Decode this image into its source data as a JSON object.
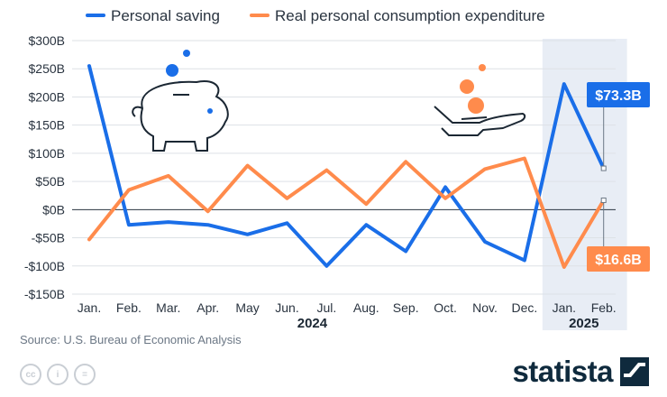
{
  "colors": {
    "saving": "#1a6ee8",
    "consumption": "#ff8b4c",
    "grid": "#dde1e6",
    "axis_text": "#2a3440",
    "highlight_band": "#e8edf5"
  },
  "legend": {
    "items": [
      {
        "label": "Personal saving",
        "color": "#1a6ee8"
      },
      {
        "label": "Real personal consumption expenditure",
        "color": "#ff8b4c"
      }
    ]
  },
  "year_labels": [
    {
      "label": "2024"
    },
    {
      "label": "2025"
    }
  ],
  "callouts": {
    "saving": "$73.3B",
    "consumption": "$16.6B"
  },
  "source": "Source: U.S. Bureau of Economic Analysis",
  "brand": "statista",
  "license_icons": [
    "cc-icon",
    "attribution-icon",
    "no-derivatives-icon"
  ],
  "license_glyphs": [
    "cc",
    "i",
    "="
  ],
  "illustrations": [
    "piggy-bank-icon",
    "hand-coins-icon"
  ],
  "chart_data": {
    "type": "line",
    "categories": [
      "Jan.",
      "Feb.",
      "Mar.",
      "Apr.",
      "May",
      "Jun.",
      "Jul.",
      "Aug.",
      "Sep.",
      "Oct.",
      "Nov.",
      "Dec.",
      "Jan.",
      "Feb."
    ],
    "series": [
      {
        "name": "Personal saving",
        "color": "#1a6ee8",
        "values": [
          255,
          -27,
          -22,
          -27,
          -44,
          -24,
          -100,
          -27,
          -74,
          40,
          -57,
          -90,
          223,
          73.3
        ]
      },
      {
        "name": "Real personal consumption expenditure",
        "color": "#ff8b4c",
        "values": [
          -53,
          35,
          60,
          -3,
          78,
          20,
          70,
          10,
          85,
          20,
          72,
          91,
          -102,
          16.6
        ]
      }
    ],
    "y_ticks": [
      {
        "value": 300,
        "label": "$300B"
      },
      {
        "value": 250,
        "label": "$250B"
      },
      {
        "value": 200,
        "label": "$200B"
      },
      {
        "value": 150,
        "label": "$150B"
      },
      {
        "value": 100,
        "label": "$100B"
      },
      {
        "value": 50,
        "label": "$50B"
      },
      {
        "value": 0,
        "label": "$0B"
      },
      {
        "value": -50,
        "label": "-$50B"
      },
      {
        "value": -100,
        "label": "-$100B"
      },
      {
        "value": -150,
        "label": "-$150B"
      }
    ],
    "ylim": [
      -150,
      300
    ],
    "grid": true,
    "legend_position": "top-left",
    "highlighted_categories": [
      "Jan.",
      "Feb."
    ],
    "highlight_range": [
      12,
      13
    ]
  }
}
